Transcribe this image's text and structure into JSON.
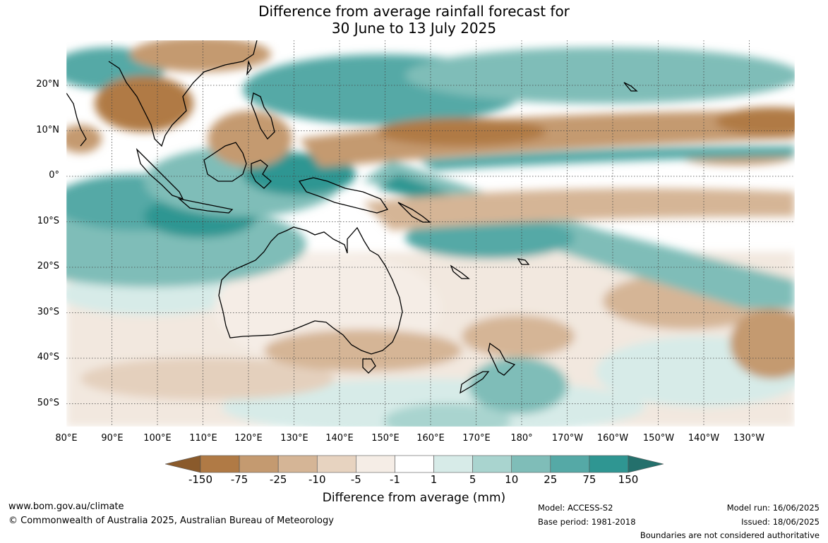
{
  "title": {
    "line1": "Difference from average rainfall forecast for",
    "line2": "30 June to 13 July 2025"
  },
  "map": {
    "lon_ticks": [
      "80°E",
      "90°E",
      "100°E",
      "110°E",
      "120°E",
      "130°E",
      "140°E",
      "150°E",
      "160°E",
      "170°E",
      "180°",
      "170°W",
      "160°W",
      "150°W",
      "140°W",
      "130°W"
    ],
    "lat_ticks": [
      "20°N",
      "10°N",
      "0°",
      "10°S",
      "20°S",
      "30°S",
      "40°S",
      "50°S"
    ],
    "lon_range": [
      80,
      240
    ],
    "lat_range": [
      -55,
      30
    ],
    "grid": "dotted"
  },
  "colorbar": {
    "labels": [
      "-150",
      "-75",
      "-25",
      "-10",
      "-5",
      "-1",
      "1",
      "5",
      "10",
      "25",
      "75",
      "150"
    ],
    "colors": [
      "#8a5a2b",
      "#b07a45",
      "#c49a70",
      "#d5b596",
      "#e7d3c0",
      "#f5ede6",
      "#ffffff",
      "#d7ebe8",
      "#a9d4cf",
      "#7fbdb8",
      "#55a9a6",
      "#2f9692",
      "#24706c"
    ],
    "title": "Difference from average (mm)"
  },
  "footer": {
    "website": "www.bom.gov.au/climate",
    "copyright": "© Commonwealth of Australia 2025, Australian Bureau of Meteorology",
    "model": "Model: ACCESS-S2",
    "base_period": "Base period: 1981-2018",
    "model_run": "Model run: 16/06/2025",
    "issued": "Issued: 18/06/2025",
    "disclaimer": "Boundaries are not considered authoritative"
  }
}
